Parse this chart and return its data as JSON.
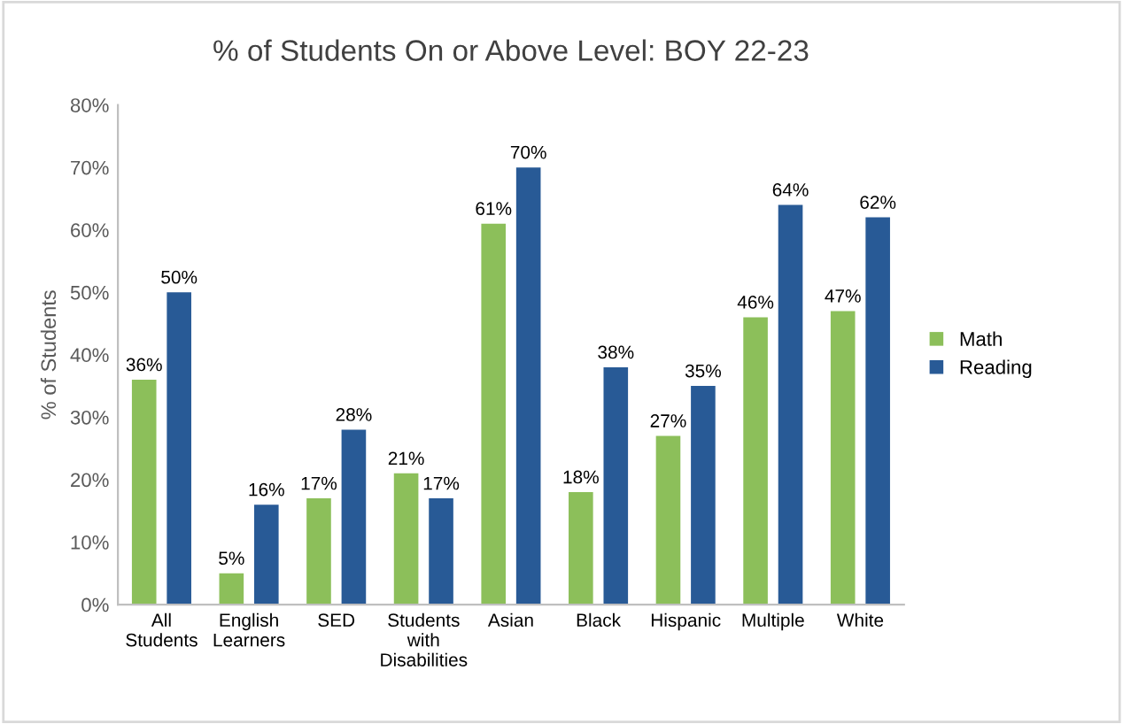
{
  "chart_data": {
    "type": "bar",
    "title": "% of Students On or Above Level: BOY 22-23",
    "ylabel": "% of Students",
    "categories": [
      "All\nStudents",
      "English\nLearners",
      "SED",
      "Students\nwith\nDisabilities",
      "Asian",
      "Black",
      "Hispanic",
      "Multiple",
      "White"
    ],
    "series": [
      {
        "name": "Math",
        "color": "#8cbf5a",
        "values": [
          36,
          5,
          17,
          21,
          61,
          18,
          27,
          46,
          47
        ],
        "value_labels": [
          "36%",
          "5%",
          "17%",
          "21%",
          "61%",
          "18%",
          "27%",
          "46%",
          "47%"
        ]
      },
      {
        "name": "Reading",
        "color": "#285a96",
        "values": [
          50,
          16,
          28,
          17,
          70,
          38,
          35,
          64,
          62
        ],
        "value_labels": [
          "50%",
          "16%",
          "28%",
          "17%",
          "70%",
          "38%",
          "35%",
          "64%",
          "62%"
        ]
      }
    ],
    "ylim": [
      0,
      80
    ],
    "yticks": [
      {
        "value": 0,
        "label": "0%"
      },
      {
        "value": 10,
        "label": "10%"
      },
      {
        "value": 20,
        "label": "20%"
      },
      {
        "value": 30,
        "label": "30%"
      },
      {
        "value": 40,
        "label": "40%"
      },
      {
        "value": 50,
        "label": "50%"
      },
      {
        "value": 60,
        "label": "60%"
      },
      {
        "value": 70,
        "label": "70%"
      },
      {
        "value": 80,
        "label": "80%"
      }
    ],
    "legend": "right"
  }
}
